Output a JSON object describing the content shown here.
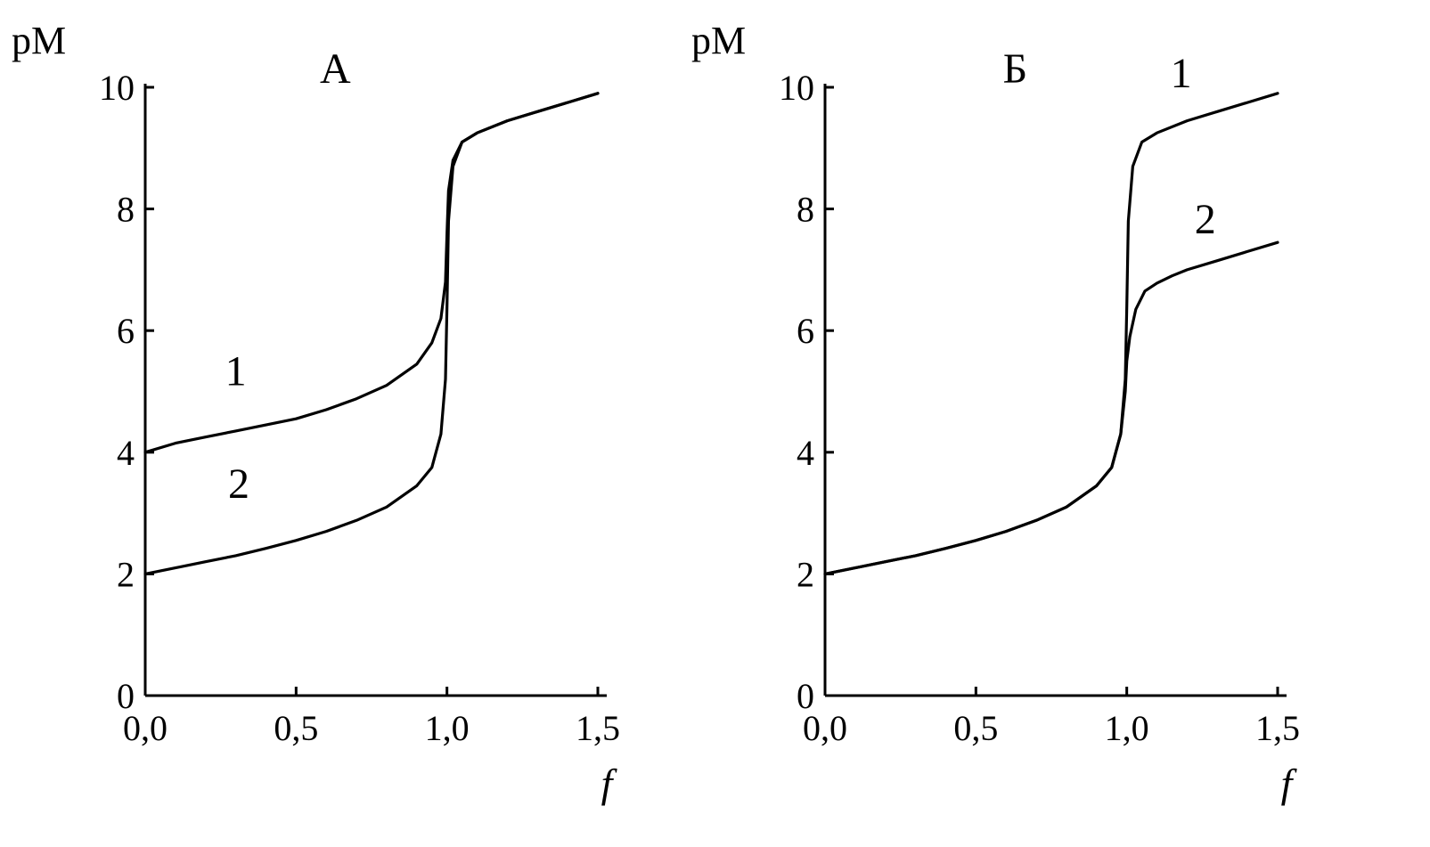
{
  "chart_data": [
    {
      "type": "line",
      "title": "А",
      "xlabel": "f",
      "ylabel": "pM",
      "xlim": [
        0,
        1.5
      ],
      "ylim": [
        0,
        10
      ],
      "x_ticks": [
        0,
        0.5,
        1.0,
        1.5
      ],
      "x_tick_labels": [
        "0,0",
        "0,5",
        "1,0",
        "1,5"
      ],
      "y_ticks": [
        0,
        2,
        4,
        6,
        8,
        10
      ],
      "y_tick_labels": [
        "0",
        "2",
        "4",
        "6",
        "8",
        "10"
      ],
      "grid": false,
      "series": [
        {
          "name": "1",
          "points": [
            [
              0.0,
              4.0
            ],
            [
              0.1,
              4.15
            ],
            [
              0.2,
              4.25
            ],
            [
              0.3,
              4.35
            ],
            [
              0.4,
              4.45
            ],
            [
              0.5,
              4.55
            ],
            [
              0.6,
              4.7
            ],
            [
              0.7,
              4.88
            ],
            [
              0.8,
              5.1
            ],
            [
              0.9,
              5.45
            ],
            [
              0.95,
              5.8
            ],
            [
              0.98,
              6.2
            ],
            [
              0.995,
              6.8
            ],
            [
              1.0,
              7.6
            ],
            [
              1.005,
              8.3
            ],
            [
              1.02,
              8.8
            ],
            [
              1.05,
              9.1
            ],
            [
              1.1,
              9.25
            ],
            [
              1.2,
              9.45
            ],
            [
              1.3,
              9.6
            ],
            [
              1.4,
              9.75
            ],
            [
              1.5,
              9.9
            ]
          ]
        },
        {
          "name": "2",
          "points": [
            [
              0.0,
              2.0
            ],
            [
              0.1,
              2.1
            ],
            [
              0.2,
              2.2
            ],
            [
              0.3,
              2.3
            ],
            [
              0.4,
              2.42
            ],
            [
              0.5,
              2.55
            ],
            [
              0.6,
              2.7
            ],
            [
              0.7,
              2.88
            ],
            [
              0.8,
              3.1
            ],
            [
              0.9,
              3.45
            ],
            [
              0.95,
              3.75
            ],
            [
              0.98,
              4.3
            ],
            [
              0.995,
              5.2
            ],
            [
              1.0,
              6.4
            ],
            [
              1.005,
              7.8
            ],
            [
              1.02,
              8.7
            ],
            [
              1.05,
              9.1
            ],
            [
              1.1,
              9.25
            ],
            [
              1.2,
              9.45
            ],
            [
              1.3,
              9.6
            ],
            [
              1.4,
              9.75
            ],
            [
              1.5,
              9.9
            ]
          ]
        }
      ],
      "annotations": [
        {
          "text": "1",
          "x": 0.3,
          "y": 5.1
        },
        {
          "text": "2",
          "x": 0.31,
          "y": 3.25
        }
      ]
    },
    {
      "type": "line",
      "title": "Б",
      "xlabel": "f",
      "ylabel": "pM",
      "xlim": [
        0,
        1.5
      ],
      "ylim": [
        0,
        10
      ],
      "x_ticks": [
        0,
        0.5,
        1.0,
        1.5
      ],
      "x_tick_labels": [
        "0,0",
        "0,5",
        "1,0",
        "1,5"
      ],
      "y_ticks": [
        0,
        2,
        4,
        6,
        8,
        10
      ],
      "y_tick_labels": [
        "0",
        "2",
        "4",
        "6",
        "8",
        "10"
      ],
      "grid": false,
      "series": [
        {
          "name": "1",
          "points": [
            [
              0.0,
              2.0
            ],
            [
              0.1,
              2.1
            ],
            [
              0.2,
              2.2
            ],
            [
              0.3,
              2.3
            ],
            [
              0.4,
              2.42
            ],
            [
              0.5,
              2.55
            ],
            [
              0.6,
              2.7
            ],
            [
              0.7,
              2.88
            ],
            [
              0.8,
              3.1
            ],
            [
              0.9,
              3.45
            ],
            [
              0.95,
              3.75
            ],
            [
              0.98,
              4.3
            ],
            [
              0.995,
              5.2
            ],
            [
              1.0,
              6.4
            ],
            [
              1.005,
              7.8
            ],
            [
              1.02,
              8.7
            ],
            [
              1.05,
              9.1
            ],
            [
              1.1,
              9.25
            ],
            [
              1.2,
              9.45
            ],
            [
              1.3,
              9.6
            ],
            [
              1.4,
              9.75
            ],
            [
              1.5,
              9.9
            ]
          ]
        },
        {
          "name": "2",
          "points": [
            [
              0.0,
              2.0
            ],
            [
              0.1,
              2.1
            ],
            [
              0.2,
              2.2
            ],
            [
              0.3,
              2.3
            ],
            [
              0.4,
              2.42
            ],
            [
              0.5,
              2.55
            ],
            [
              0.6,
              2.7
            ],
            [
              0.7,
              2.88
            ],
            [
              0.8,
              3.1
            ],
            [
              0.9,
              3.45
            ],
            [
              0.95,
              3.75
            ],
            [
              0.98,
              4.3
            ],
            [
              0.995,
              5.0
            ],
            [
              1.0,
              5.5
            ],
            [
              1.01,
              5.9
            ],
            [
              1.03,
              6.35
            ],
            [
              1.06,
              6.65
            ],
            [
              1.1,
              6.78
            ],
            [
              1.15,
              6.9
            ],
            [
              1.2,
              7.0
            ],
            [
              1.3,
              7.15
            ],
            [
              1.4,
              7.3
            ],
            [
              1.5,
              7.45
            ]
          ]
        }
      ],
      "annotations": [
        {
          "text": "1",
          "x": 1.18,
          "y": 10.0
        },
        {
          "text": "2",
          "x": 1.26,
          "y": 7.6
        }
      ]
    }
  ]
}
